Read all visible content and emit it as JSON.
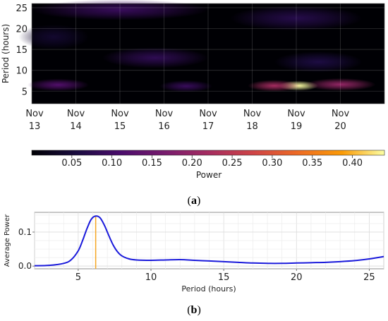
{
  "figure": {
    "panel_a_label": "(a)",
    "panel_b_label": "(b)",
    "panel_a_letter": "a",
    "panel_b_letter": "b"
  },
  "chart_data": [
    {
      "type": "heatmap",
      "ylabel": "Period (hours)",
      "ylim": [
        2,
        26
      ],
      "yticks": [
        5,
        10,
        15,
        20,
        25
      ],
      "x_tick_labels": [
        {
          "top": "Nov",
          "bottom": "13"
        },
        {
          "top": "Nov",
          "bottom": "14"
        },
        {
          "top": "Nov",
          "bottom": "15"
        },
        {
          "top": "Nov",
          "bottom": "16"
        },
        {
          "top": "Nov",
          "bottom": "17"
        },
        {
          "top": "Nov",
          "bottom": "18"
        },
        {
          "top": "Nov",
          "bottom": "19"
        },
        {
          "top": "Nov",
          "bottom": "20"
        }
      ],
      "xlim_days": [
        13.0,
        21.0
      ],
      "x_tick_days": [
        13.0,
        14.0,
        15.0,
        16.0,
        17.0,
        18.0,
        19.0,
        20.0
      ],
      "colormap": "inferno",
      "grid": true,
      "colorbar": {
        "label": "Power",
        "range": [
          0.0,
          0.44
        ],
        "ticks": [
          0.05,
          0.1,
          0.15,
          0.2,
          0.25,
          0.3,
          0.35,
          0.4
        ],
        "tick_labels": [
          "0.05",
          "0.10",
          "0.15",
          "0.20",
          "0.25",
          "0.30",
          "0.35",
          "0.40"
        ]
      },
      "power_features": [
        {
          "day": 19.05,
          "period": 6.3,
          "power": 0.44,
          "day_spread": 0.45,
          "period_spread": 1.2
        },
        {
          "day": 18.5,
          "period": 6.3,
          "power": 0.22,
          "day_spread": 0.6,
          "period_spread": 1.4
        },
        {
          "day": 20.0,
          "period": 6.6,
          "power": 0.2,
          "day_spread": 0.8,
          "period_spread": 1.5
        },
        {
          "day": 13.6,
          "period": 6.5,
          "power": 0.12,
          "day_spread": 0.7,
          "period_spread": 1.5
        },
        {
          "day": 16.5,
          "period": 6.2,
          "power": 0.09,
          "day_spread": 0.6,
          "period_spread": 1.4
        },
        {
          "day": 15.8,
          "period": 13.0,
          "power": 0.08,
          "day_spread": 1.2,
          "period_spread": 2.5
        },
        {
          "day": 19.5,
          "period": 12.0,
          "power": 0.06,
          "day_spread": 1.0,
          "period_spread": 2.5
        },
        {
          "day": 15.0,
          "period": 24.5,
          "power": 0.09,
          "day_spread": 2.0,
          "period_spread": 2.5
        },
        {
          "day": 19.0,
          "period": 22.5,
          "power": 0.07,
          "day_spread": 1.5,
          "period_spread": 3.0
        },
        {
          "day": 13.5,
          "period": 18.0,
          "power": 0.04,
          "day_spread": 0.8,
          "period_spread": 3.0
        }
      ]
    },
    {
      "type": "line",
      "xlabel": "Period (hours)",
      "ylabel": "Average Power",
      "xlim": [
        2,
        26
      ],
      "ylim": [
        -0.008,
        0.158
      ],
      "xticks": [
        5,
        10,
        15,
        20,
        25
      ],
      "yticks": [
        0.0,
        0.1
      ],
      "ytick_labels": [
        "0.0",
        "0.1"
      ],
      "grid": true,
      "line_color": "#1a1adb",
      "marker_color": "#f5a623",
      "peak_marker_x": 6.2,
      "series": [
        {
          "x": [
            2,
            3,
            4,
            4.5,
            5,
            5.3,
            5.6,
            5.9,
            6.2,
            6.5,
            6.8,
            7.1,
            7.4,
            7.7,
            8.0,
            8.5,
            9,
            10,
            11,
            12,
            13,
            14,
            15,
            16,
            17,
            18,
            19,
            20,
            21,
            22,
            23,
            24,
            25,
            26
          ],
          "values": [
            0.001,
            0.002,
            0.008,
            0.018,
            0.045,
            0.075,
            0.11,
            0.138,
            0.147,
            0.142,
            0.12,
            0.09,
            0.062,
            0.042,
            0.03,
            0.021,
            0.018,
            0.017,
            0.018,
            0.019,
            0.017,
            0.015,
            0.013,
            0.011,
            0.009,
            0.008,
            0.008,
            0.009,
            0.01,
            0.011,
            0.013,
            0.016,
            0.021,
            0.028
          ]
        }
      ]
    }
  ]
}
